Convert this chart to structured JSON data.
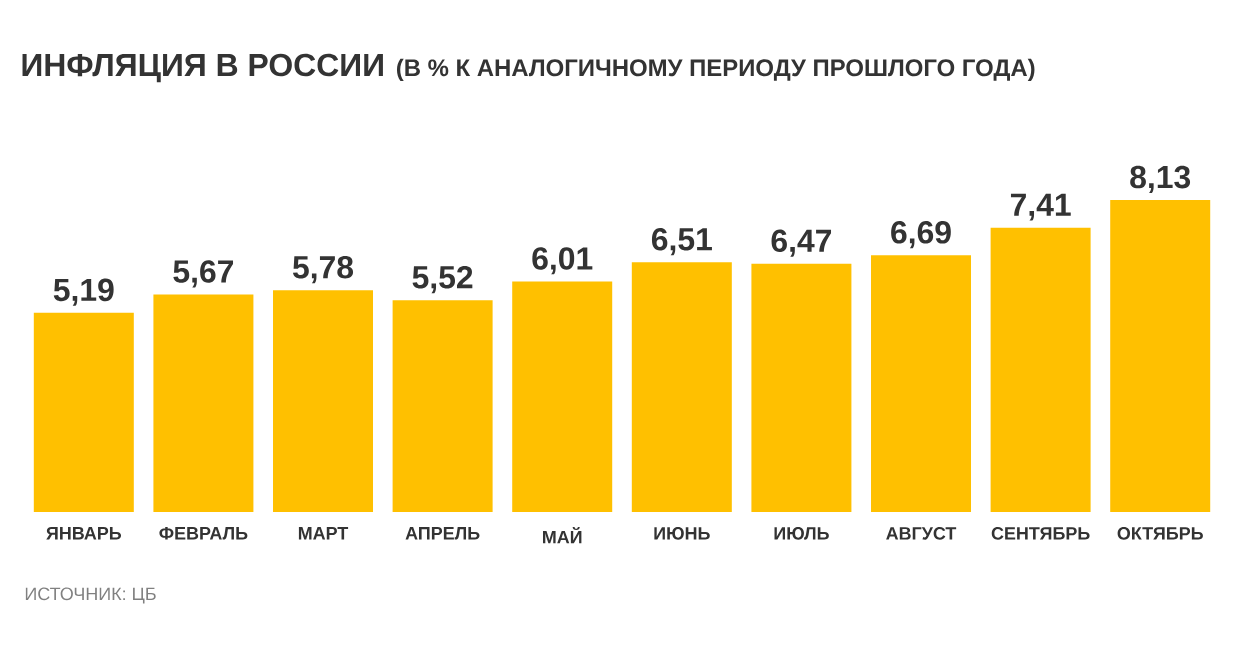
{
  "chart_data": {
    "type": "bar",
    "title": "ИНФЛЯЦИЯ В РОССИИ",
    "subtitle": "(В % К АНАЛОГИЧНОМУ ПЕРИОДУ ПРОШЛОГО ГОДА)",
    "categories": [
      "ЯНВАРЬ",
      "ФЕВРАЛЬ",
      "МАРТ",
      "АПРЕЛЬ",
      "МАЙ",
      "ИЮНЬ",
      "ИЮЛЬ",
      "АВГУСТ",
      "СЕНТЯБРЬ",
      "ОКТЯБРЬ"
    ],
    "values": [
      5.19,
      5.67,
      5.78,
      5.52,
      6.01,
      6.51,
      6.47,
      6.69,
      7.41,
      8.13
    ],
    "value_labels": [
      "5,19",
      "5,67",
      "5,78",
      "5,52",
      "6,01",
      "6,51",
      "6,47",
      "6,69",
      "7,41",
      "8,13"
    ],
    "color": "#ffc000",
    "annotations": [
      "ИСТОЧНИК: ЦБ"
    ]
  }
}
